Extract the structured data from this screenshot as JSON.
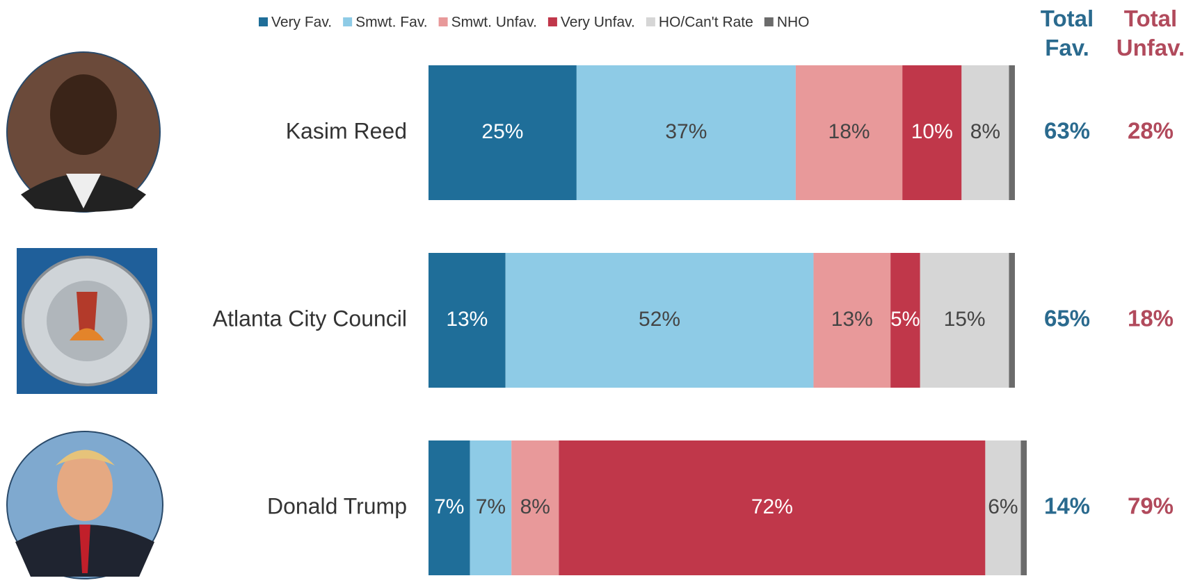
{
  "chart_data": {
    "type": "stacked-bar",
    "categories": [
      "Kasim Reed",
      "Atlanta City Council",
      "Donald Trump"
    ],
    "xlim": [
      0,
      101
    ],
    "series": [
      {
        "name": "Very Fav.",
        "color": "#1f6e99",
        "values": [
          25,
          13,
          7
        ],
        "value_labels": [
          "25%",
          "13%",
          "7%"
        ]
      },
      {
        "name": "Smwt. Fav.",
        "color": "#8ecbe6",
        "values": [
          37,
          52,
          7
        ],
        "value_labels": [
          "37%",
          "52%",
          "7%"
        ]
      },
      {
        "name": "Smwt. Unfav.",
        "color": "#e8999a",
        "values": [
          18,
          13,
          8
        ],
        "value_labels": [
          "18%",
          "13%",
          "8%"
        ]
      },
      {
        "name": "Very Unfav.",
        "color": "#c0374a",
        "values": [
          10,
          5,
          72
        ],
        "value_labels": [
          "10%",
          "5%",
          "72%"
        ]
      },
      {
        "name": "HO/Can't Rate",
        "color": "#d6d6d6",
        "values": [
          8,
          15,
          6
        ],
        "value_labels": [
          "8%",
          "15%",
          "6%"
        ]
      },
      {
        "name": "NHO",
        "color": "#6b6b6b",
        "values": [
          1,
          1,
          1
        ]
      }
    ],
    "totals": [
      {
        "name": "Total Fav.",
        "color": "#2a6a8e",
        "values": [
          63,
          65,
          14
        ],
        "value_labels": [
          "63%",
          "65%",
          "14%"
        ]
      },
      {
        "name": "Total Unfav.",
        "color": "#b14a5c",
        "values": [
          28,
          18,
          79
        ],
        "value_labels": [
          "28%",
          "18%",
          "79%"
        ]
      }
    ]
  }
}
